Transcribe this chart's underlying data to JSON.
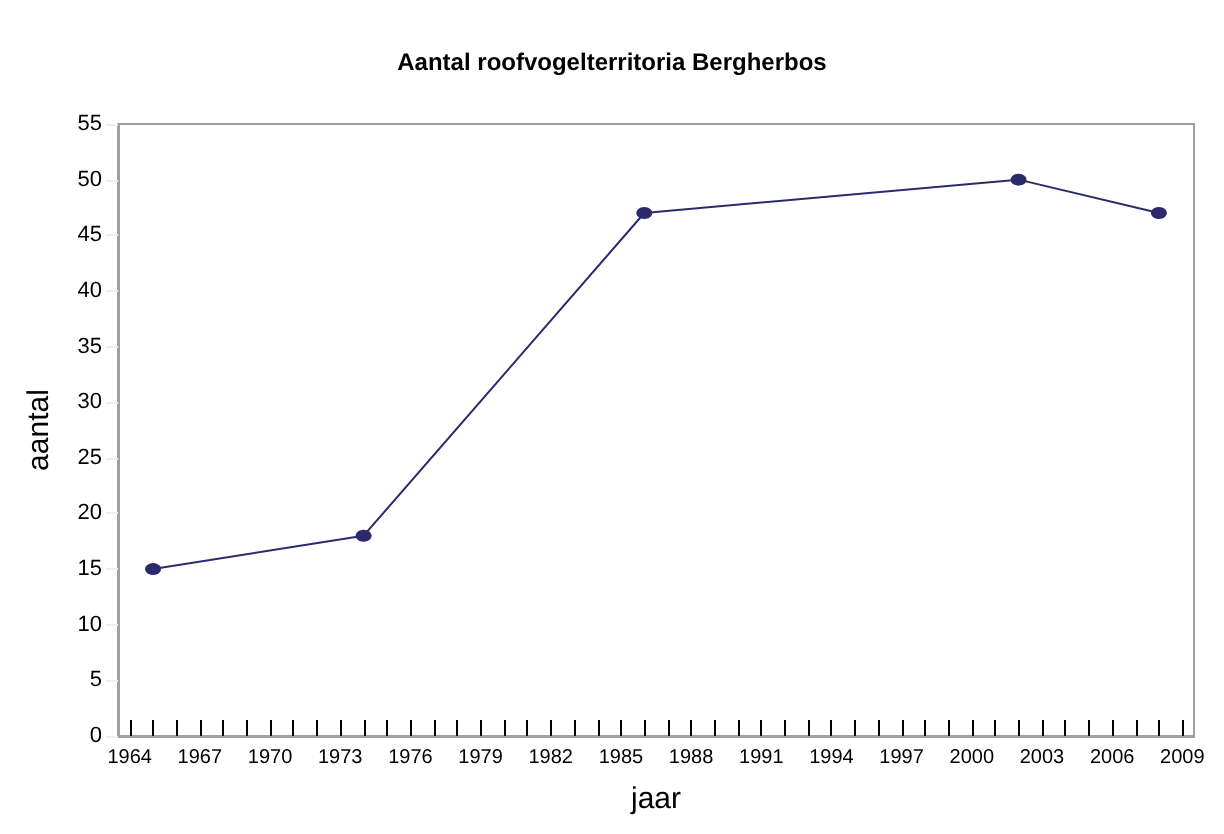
{
  "chart_data": {
    "type": "line",
    "title": "Aantal roofvogelterritoria Bergherbos",
    "xlabel": "jaar",
    "ylabel": "aantal",
    "x": [
      1965,
      1974,
      1986,
      2002,
      2008
    ],
    "series": [
      {
        "color": "#2b2a6b",
        "values": [
          15,
          18,
          47,
          50,
          47
        ]
      }
    ],
    "marker": "circle",
    "line_style": "solid",
    "grid": false,
    "xlim": [
      1963.5,
      2009.5
    ],
    "xticks": [
      1964,
      {
        "value": 1965,
        "label": null
      },
      {
        "value": 1966,
        "label": null
      },
      1967,
      {
        "value": 1968,
        "label": null
      },
      {
        "value": 1969,
        "label": null
      },
      1970,
      {
        "value": 1971,
        "label": null
      },
      {
        "value": 1972,
        "label": null
      },
      1973,
      {
        "value": 1974,
        "label": null
      },
      {
        "value": 1975,
        "label": null
      },
      1976,
      {
        "value": 1977,
        "label": null
      },
      {
        "value": 1978,
        "label": null
      },
      1979,
      {
        "value": 1980,
        "label": null
      },
      {
        "value": 1981,
        "label": null
      },
      1982,
      {
        "value": 1983,
        "label": null
      },
      {
        "value": 1984,
        "label": null
      },
      1985,
      {
        "value": 1986,
        "label": null
      },
      {
        "value": 1987,
        "label": null
      },
      1988,
      {
        "value": 1989,
        "label": null
      },
      {
        "value": 1990,
        "label": null
      },
      1991,
      {
        "value": 1992,
        "label": null
      },
      {
        "value": 1993,
        "label": null
      },
      1994,
      {
        "value": 1995,
        "label": null
      },
      {
        "value": 1996,
        "label": null
      },
      1997,
      {
        "value": 1998,
        "label": null
      },
      {
        "value": 1999,
        "label": null
      },
      2000,
      {
        "value": 2001,
        "label": null
      },
      {
        "value": 2002,
        "label": null
      },
      2003,
      {
        "value": 2004,
        "label": null
      },
      {
        "value": 2005,
        "label": null
      },
      2006,
      {
        "value": 2007,
        "label": null
      },
      {
        "value": 2008,
        "label": null
      },
      2009
    ],
    "ylim": [
      0,
      55
    ],
    "yticks": [
      0,
      5,
      10,
      15,
      20,
      25,
      30,
      35,
      40,
      45,
      50,
      55
    ]
  }
}
